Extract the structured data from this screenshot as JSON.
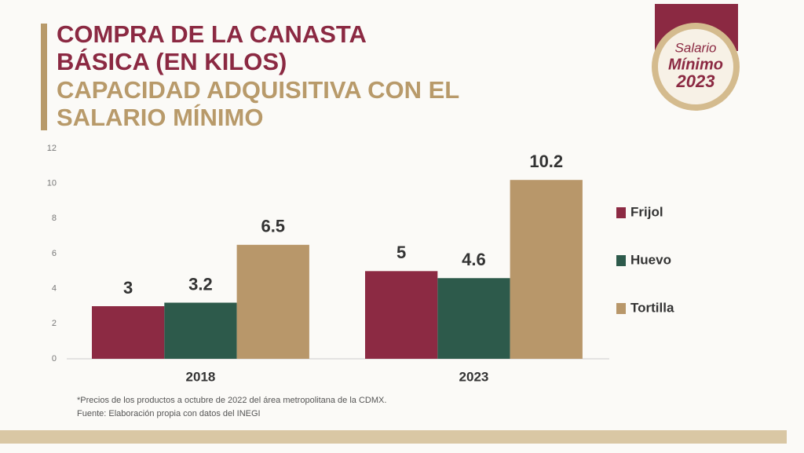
{
  "chart_data": {
    "type": "bar",
    "title": [
      "COMPRA DE LA CANASTA",
      "BÁSICA (EN KILOS)"
    ],
    "subtitle": [
      "CAPACIDAD ADQUISITIVA CON EL",
      "SALARIO MÍNIMO"
    ],
    "categories": [
      "2018",
      "2023"
    ],
    "series": [
      {
        "name": "Frijol",
        "color": "#8c2a43",
        "values": [
          3,
          5
        ]
      },
      {
        "name": "Huevo",
        "color": "#2d5a4b",
        "values": [
          3.2,
          4.6
        ]
      },
      {
        "name": "Tortilla",
        "color": "#b8976a",
        "values": [
          6.5,
          10.2
        ]
      }
    ],
    "ylim": [
      0,
      12
    ],
    "yticks": [
      0,
      2,
      4,
      6,
      8,
      10,
      12
    ],
    "grid": false,
    "legend": "right",
    "notes": [
      "*Precios de los productos a octubre de 2022 del área metropolitana de la CDMX.",
      "Fuente: Elaboración propia con datos del INEGI"
    ]
  },
  "badge": [
    "Salario",
    "Mínimo",
    "2023"
  ]
}
